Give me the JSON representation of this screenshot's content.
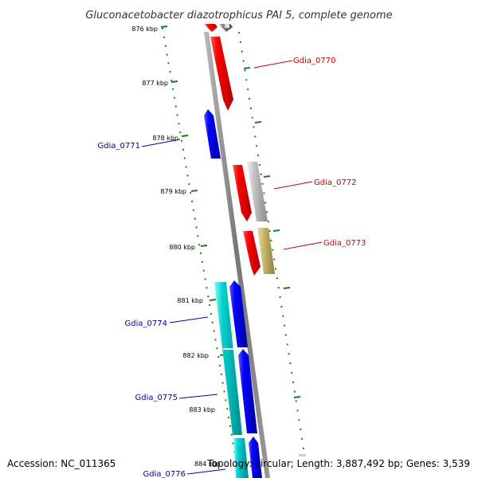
{
  "title": "Gluconacetobacter diazotrophicus PAI 5, complete genome",
  "footer": {
    "accession": "Accession: NC_011365",
    "topology": "Topology: circular; Length: 3,887,492 bp; Genes: 3,539"
  },
  "colors": {
    "backbone": "#8f8f8f",
    "forward_cds": "#ff0000",
    "reverse_cds": "#0000ff",
    "rna": "#c0c0c0",
    "other": "#c8b86a",
    "cyan_gene": "#00cccc",
    "tick": "#1f7a1f",
    "label_forward": "#cc0000",
    "label_reverse": "#0000aa"
  },
  "ticks": [
    "876 kbp",
    "877 kbp",
    "878 kbp",
    "879 kbp",
    "880 kbp",
    "881 kbp",
    "882 kbp",
    "883 kbp",
    "884 kbp"
  ],
  "gene_labels": {
    "forward": [
      "Gdia_0770",
      "Gdia_0772",
      "Gdia_0773"
    ],
    "reverse": [
      "Gdia_0771",
      "Gdia_0774",
      "Gdia_0775",
      "Gdia_0776"
    ]
  }
}
